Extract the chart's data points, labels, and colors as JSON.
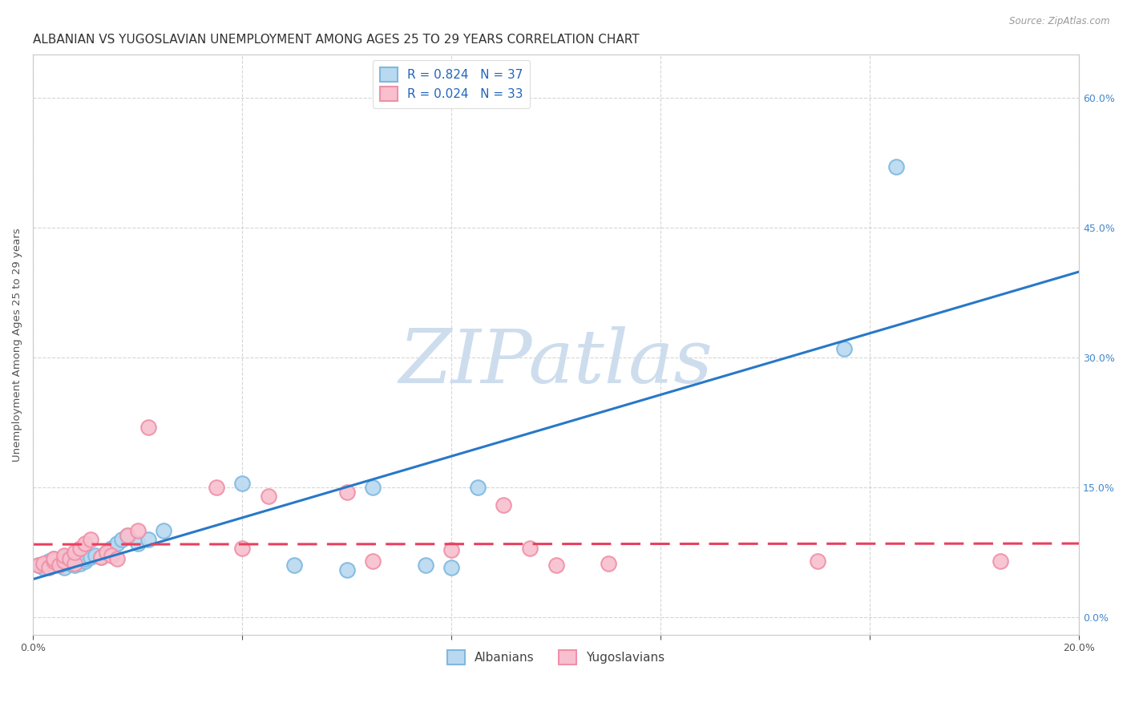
{
  "title": "ALBANIAN VS YUGOSLAVIAN UNEMPLOYMENT AMONG AGES 25 TO 29 YEARS CORRELATION CHART",
  "source": "Source: ZipAtlas.com",
  "ylabel": "Unemployment Among Ages 25 to 29 years",
  "xlim": [
    0.0,
    0.2
  ],
  "ylim": [
    -0.02,
    0.65
  ],
  "right_yticks": [
    0.0,
    0.15,
    0.3,
    0.45,
    0.6
  ],
  "right_yticklabels": [
    "0.0%",
    "15.0%",
    "30.0%",
    "45.0%",
    "60.0%"
  ],
  "xticks": [
    0.0,
    0.04,
    0.08,
    0.12,
    0.16,
    0.2
  ],
  "xticklabels": [
    "0.0%",
    "",
    "",
    "",
    "",
    "20.0%"
  ],
  "albanian_R": 0.824,
  "albanian_N": 37,
  "yugoslav_R": 0.024,
  "yugoslav_N": 33,
  "albanian_color": "#7fb9e0",
  "albanian_face": "#b8d9f0",
  "yugoslav_color": "#f090a8",
  "yugoslav_face": "#f8c0ce",
  "regression_albanian_color": "#2878c8",
  "regression_yugoslav_color": "#e84060",
  "watermark_text": "ZIPatlas",
  "watermark_color": "#cddded",
  "background_color": "#ffffff",
  "grid_color": "#cccccc",
  "albanian_x": [
    0.001,
    0.002,
    0.003,
    0.003,
    0.004,
    0.004,
    0.005,
    0.005,
    0.006,
    0.006,
    0.007,
    0.007,
    0.008,
    0.008,
    0.009,
    0.01,
    0.01,
    0.011,
    0.012,
    0.013,
    0.014,
    0.015,
    0.016,
    0.017,
    0.018,
    0.02,
    0.022,
    0.025,
    0.04,
    0.05,
    0.06,
    0.065,
    0.075,
    0.08,
    0.085,
    0.155,
    0.165
  ],
  "albanian_y": [
    0.06,
    0.058,
    0.062,
    0.065,
    0.06,
    0.068,
    0.062,
    0.065,
    0.058,
    0.07,
    0.062,
    0.068,
    0.06,
    0.065,
    0.062,
    0.065,
    0.068,
    0.07,
    0.072,
    0.07,
    0.075,
    0.08,
    0.085,
    0.09,
    0.095,
    0.085,
    0.09,
    0.1,
    0.155,
    0.06,
    0.055,
    0.15,
    0.06,
    0.058,
    0.15,
    0.31,
    0.52
  ],
  "yugoslav_x": [
    0.001,
    0.002,
    0.003,
    0.004,
    0.004,
    0.005,
    0.006,
    0.006,
    0.007,
    0.008,
    0.008,
    0.009,
    0.01,
    0.011,
    0.013,
    0.014,
    0.015,
    0.016,
    0.018,
    0.02,
    0.022,
    0.035,
    0.04,
    0.045,
    0.06,
    0.065,
    0.08,
    0.09,
    0.095,
    0.1,
    0.11,
    0.15,
    0.185
  ],
  "yugoslav_y": [
    0.06,
    0.062,
    0.058,
    0.065,
    0.068,
    0.06,
    0.065,
    0.072,
    0.068,
    0.062,
    0.075,
    0.08,
    0.085,
    0.09,
    0.07,
    0.075,
    0.072,
    0.068,
    0.095,
    0.1,
    0.22,
    0.15,
    0.08,
    0.14,
    0.145,
    0.065,
    0.078,
    0.13,
    0.08,
    0.06,
    0.062,
    0.065,
    0.065
  ],
  "legend_items": [
    "Albanians",
    "Yugoslavians"
  ],
  "title_fontsize": 11,
  "axis_fontsize": 9.5,
  "tick_fontsize": 9,
  "legend_fontsize": 11
}
